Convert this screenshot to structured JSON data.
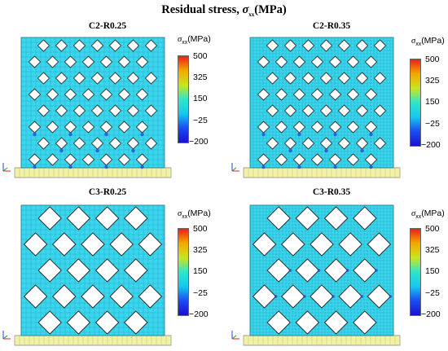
{
  "figure": {
    "title_prefix": "Residual stress, ",
    "title_symbol": "σ",
    "title_subscript": "xx",
    "title_unit": "(MPa)"
  },
  "colorbar": {
    "symbol": "σ",
    "subscript": "xx",
    "unit": "(MPa)",
    "ticks": [
      "500",
      "325",
      "150",
      "−25",
      "−200"
    ],
    "colors": [
      "#e8201c",
      "#f5a800",
      "#c8e61e",
      "#30e6c8",
      "#16c8f0",
      "#1a4cf0",
      "#1a10d0"
    ]
  },
  "panels": [
    {
      "title": "C2-R0.25",
      "pattern": "holes"
    },
    {
      "title": "C2-R0.35",
      "pattern": "holes"
    },
    {
      "title": "C3-R0.25",
      "pattern": "lattice"
    },
    {
      "title": "C3-R0.35",
      "pattern": "lattice"
    }
  ],
  "colors": {
    "mesh_fill": "#3ad6ee",
    "mesh_line": "#1a7a8c",
    "base_fill": "#f2f2a0",
    "hotspot": "#2a40e0"
  }
}
